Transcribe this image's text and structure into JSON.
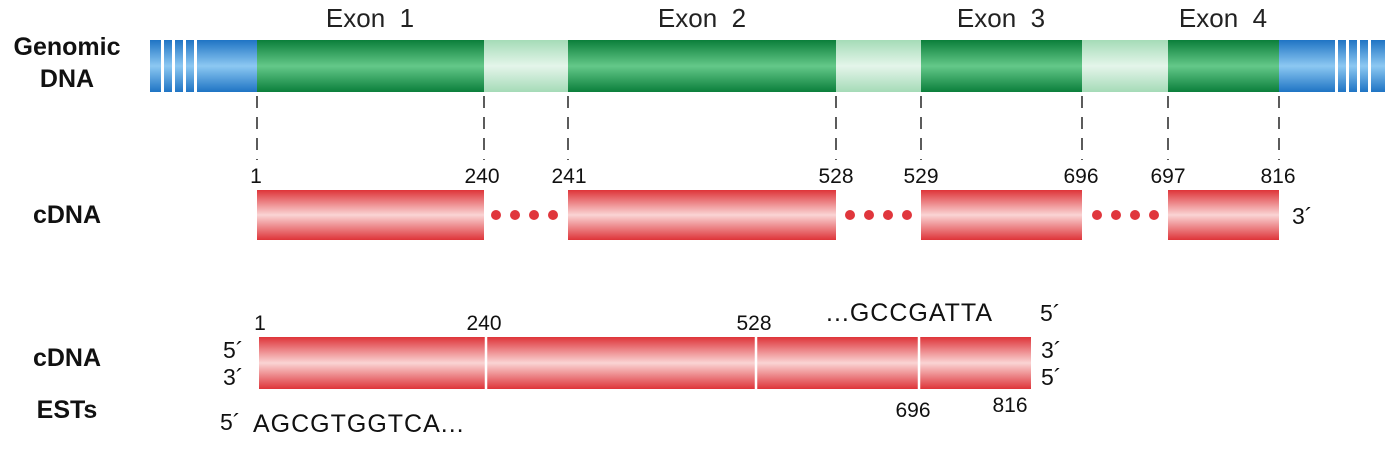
{
  "genomic": {
    "label_line1": "Genomic",
    "label_line2": "DNA",
    "exons": [
      "Exon  1",
      "Exon  2",
      "Exon  3",
      "Exon  4"
    ]
  },
  "cdna_top": {
    "label": "cDNA",
    "three_prime": "3´",
    "boundaries": [
      [
        "1",
        "240"
      ],
      [
        "241",
        "528"
      ],
      [
        "529",
        "696"
      ],
      [
        "697",
        "816"
      ]
    ]
  },
  "cdna_bottom": {
    "label": "cDNA",
    "ests_label": "ESTs",
    "left_five": "5´",
    "left_three": "3´",
    "right_three": "3´",
    "right_five": "5´",
    "top_positions": [
      "1",
      "240",
      "528"
    ],
    "bottom_positions": [
      "696",
      "816"
    ],
    "seq_top": "...GCCGATTA",
    "seq_top_end": "5´",
    "seq_bottom_start": "5´",
    "seq_bottom": "AGCGTGGTCA..."
  },
  "colors": {
    "exon_green": "#139a4e",
    "intron_green": "#bfe6cc",
    "utr_blue": "#2d8fd6",
    "cdna_red": "#e8434a"
  }
}
